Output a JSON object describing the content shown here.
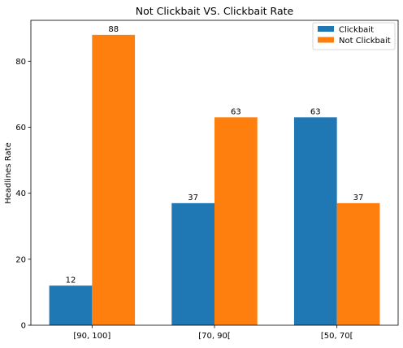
{
  "chart_data": {
    "type": "bar",
    "title": "Not Clickbait VS. Clickbait Rate",
    "xlabel": "",
    "ylabel": "Headlines Rate",
    "categories": [
      "[90, 100]",
      "[70, 90[",
      "[50, 70["
    ],
    "series": [
      {
        "name": "Clickbait",
        "values": [
          12,
          37,
          63
        ],
        "color": "#1f77b4"
      },
      {
        "name": "Not Clickbait",
        "values": [
          88,
          63,
          37
        ],
        "color": "#ff7f0e"
      }
    ],
    "ylim": [
      0,
      92.4
    ],
    "yticks": [
      0,
      20,
      40,
      60,
      80
    ],
    "grid": false,
    "legend": "top-right",
    "data_labels": true
  }
}
